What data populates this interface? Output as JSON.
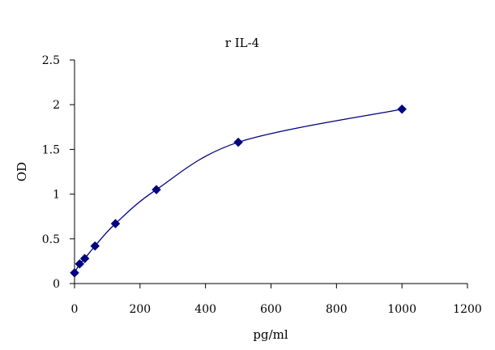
{
  "chart_data": {
    "type": "scatter",
    "title": "r IL-4",
    "xlabel": "pg/ml",
    "ylabel": "OD",
    "xlim": [
      0,
      1200
    ],
    "ylim": [
      0,
      2.5
    ],
    "x_ticks": [
      0,
      200,
      400,
      600,
      800,
      1000,
      1200
    ],
    "y_ticks": [
      0,
      0.5,
      1,
      1.5,
      2,
      2.5
    ],
    "x_tick_labels": [
      "0",
      "200",
      "400",
      "600",
      "800",
      "1000",
      "1200"
    ],
    "y_tick_labels": [
      "0",
      "0.5",
      "1",
      "1.5",
      "2",
      "2.5"
    ],
    "grid": false,
    "legend": "none",
    "series": [
      {
        "marker": "diamond",
        "smooth_line": true,
        "color": "#000080",
        "points": [
          {
            "x": 0,
            "y": 0.12
          },
          {
            "x": 15.6,
            "y": 0.22
          },
          {
            "x": 31.25,
            "y": 0.28
          },
          {
            "x": 62.5,
            "y": 0.42
          },
          {
            "x": 125,
            "y": 0.67
          },
          {
            "x": 250,
            "y": 1.05
          },
          {
            "x": 500,
            "y": 1.58
          },
          {
            "x": 1000,
            "y": 1.95
          }
        ]
      }
    ]
  },
  "colors": {
    "series": "#000080",
    "axis": "#000000",
    "background": "#ffffff"
  }
}
